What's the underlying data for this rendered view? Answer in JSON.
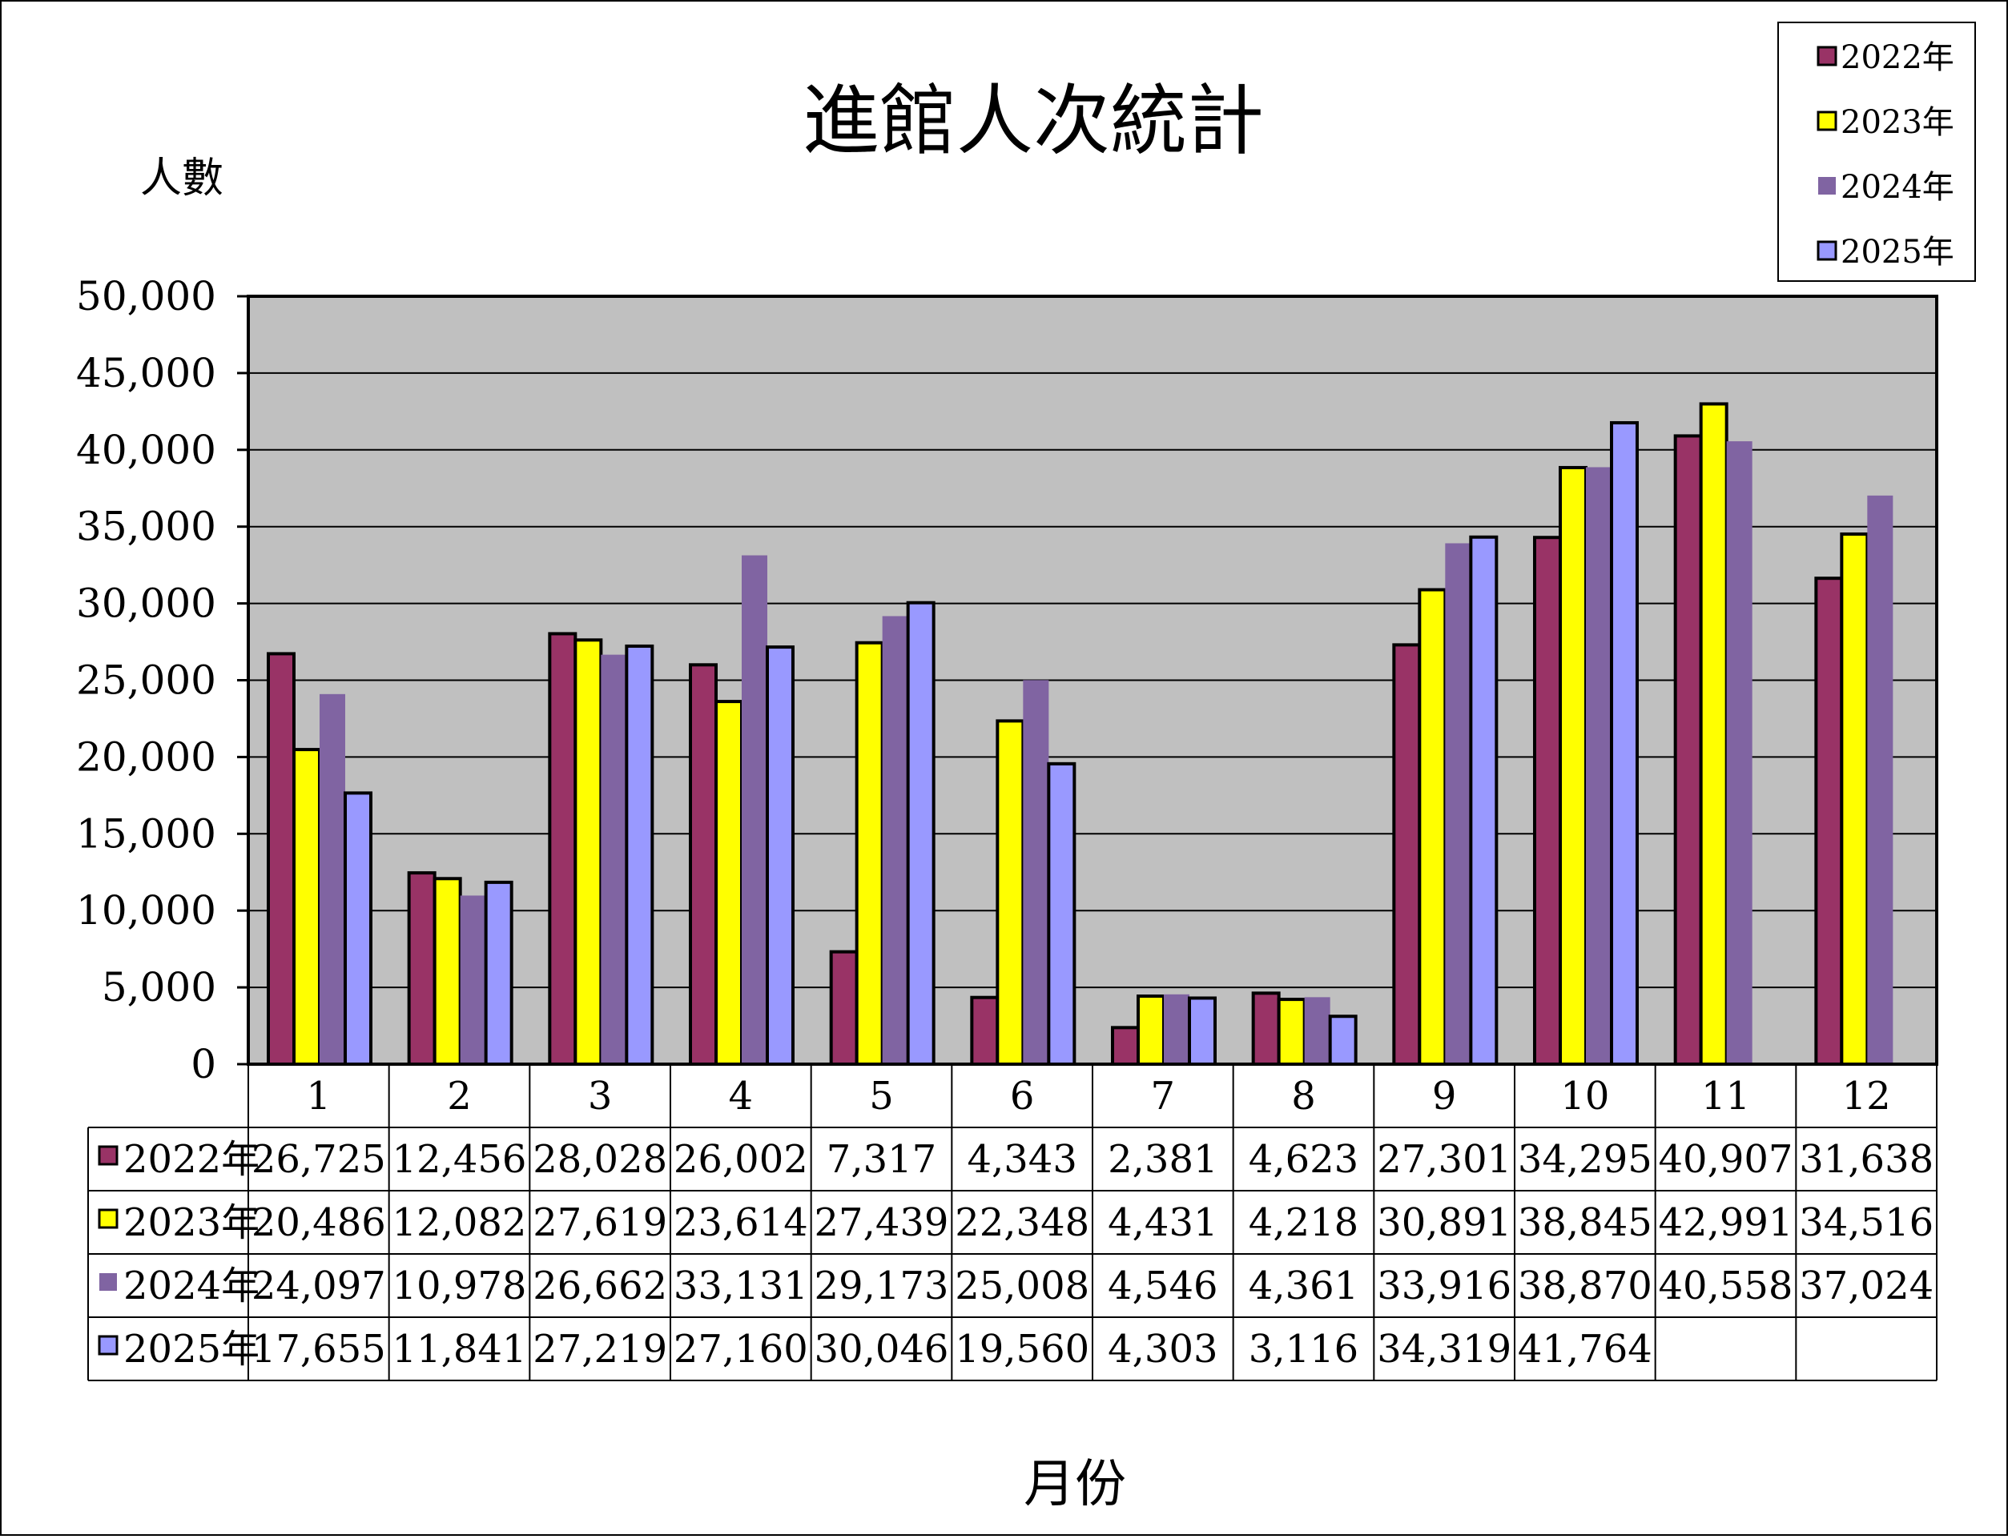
{
  "chart_data": {
    "type": "bar",
    "title": "進館人次統計",
    "ylabel": "人數",
    "xlabel": "月份",
    "ylim": [
      0,
      50000
    ],
    "ytick_step": 5000,
    "yticks": [
      "0",
      "5,000",
      "10,000",
      "15,000",
      "20,000",
      "25,000",
      "30,000",
      "35,000",
      "40,000",
      "45,000",
      "50,000"
    ],
    "categories": [
      "1",
      "2",
      "3",
      "4",
      "5",
      "6",
      "7",
      "8",
      "9",
      "10",
      "11",
      "12"
    ],
    "grid": true,
    "legend_position": "top-right",
    "plot_background": "#c0c0c0",
    "series": [
      {
        "name": "2022年",
        "color": "#993366",
        "outlined": true,
        "values": [
          26725,
          12456,
          28028,
          26002,
          7317,
          4343,
          2381,
          4623,
          27301,
          34295,
          40907,
          31638
        ],
        "labels": [
          "26,725",
          "12,456",
          "28,028",
          "26,002",
          "7,317",
          "4,343",
          "2,381",
          "4,623",
          "27,301",
          "34,295",
          "40,907",
          "31,638"
        ]
      },
      {
        "name": "2023年",
        "color": "#ffff00",
        "outlined": true,
        "values": [
          20486,
          12082,
          27619,
          23614,
          27439,
          22348,
          4431,
          4218,
          30891,
          38845,
          42991,
          34516
        ],
        "labels": [
          "20,486",
          "12,082",
          "27,619",
          "23,614",
          "27,439",
          "22,348",
          "4,431",
          "4,218",
          "30,891",
          "38,845",
          "42,991",
          "34,516"
        ]
      },
      {
        "name": "2024年",
        "color": "#8064a2",
        "outlined": false,
        "values": [
          24097,
          10978,
          26662,
          33131,
          29173,
          25008,
          4546,
          4361,
          33916,
          38870,
          40558,
          37024
        ],
        "labels": [
          "24,097",
          "10,978",
          "26,662",
          "33,131",
          "29,173",
          "25,008",
          "4,546",
          "4,361",
          "33,916",
          "38,870",
          "40,558",
          "37,024"
        ]
      },
      {
        "name": "2025年",
        "color": "#9999ff",
        "outlined": true,
        "values": [
          17655,
          11841,
          27219,
          27160,
          30046,
          19560,
          4303,
          3116,
          34319,
          41764,
          null,
          null
        ],
        "labels": [
          "17,655",
          "11,841",
          "27,219",
          "27,160",
          "30,046",
          "19,560",
          "4,303",
          "3,116",
          "34,319",
          "41,764",
          "",
          ""
        ]
      }
    ]
  }
}
